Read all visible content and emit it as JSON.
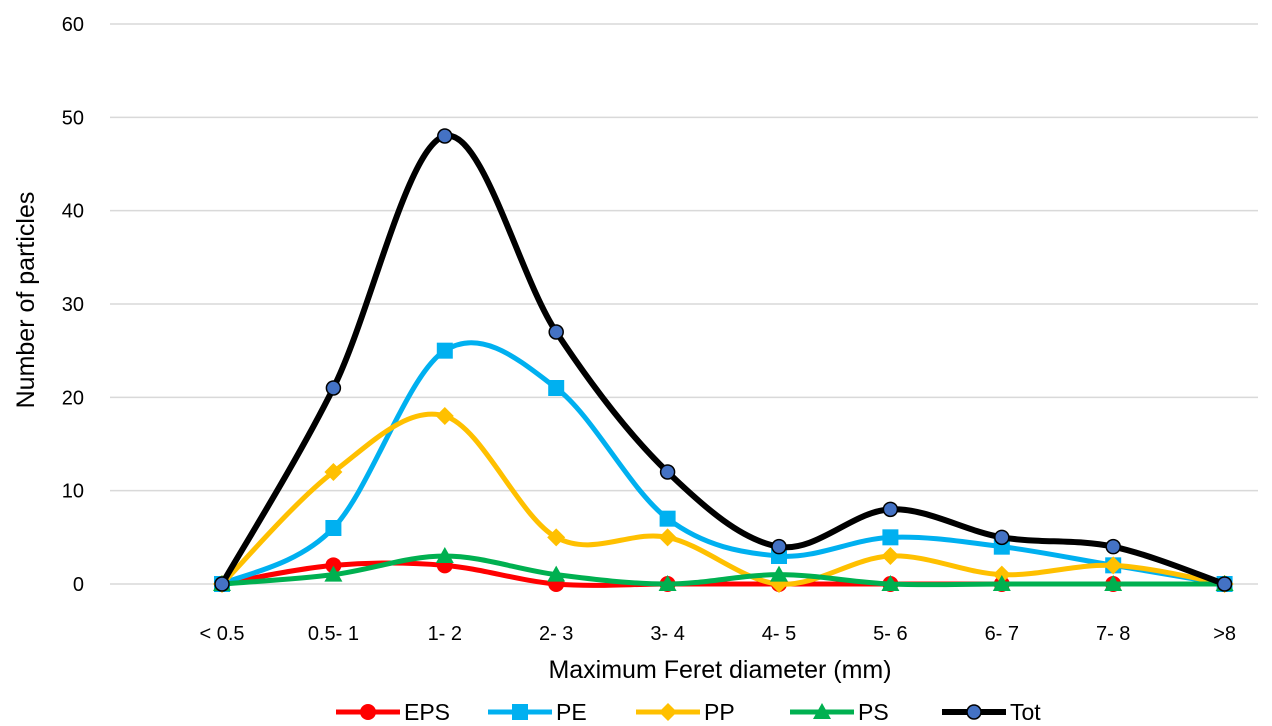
{
  "chart_data": {
    "type": "line",
    "smooth": true,
    "categories": [
      "< 0.5",
      "0.5- 1",
      "1- 2",
      "2- 3",
      "3- 4",
      "4- 5",
      "5- 6",
      "6- 7",
      "7- 8",
      ">8"
    ],
    "series": [
      {
        "name": "EPS",
        "color": "#ff0000",
        "marker": "circle",
        "values": [
          0,
          2,
          2,
          0,
          0,
          0,
          0,
          0,
          0,
          0
        ]
      },
      {
        "name": "PE",
        "color": "#00b0f0",
        "marker": "square",
        "values": [
          0,
          6,
          25,
          21,
          7,
          3,
          5,
          4,
          2,
          0
        ]
      },
      {
        "name": "PP",
        "color": "#ffc000",
        "marker": "diamond",
        "values": [
          0,
          12,
          18,
          5,
          5,
          0,
          3,
          1,
          2,
          0
        ]
      },
      {
        "name": "PS",
        "color": "#00b050",
        "marker": "triangle",
        "values": [
          0,
          1,
          3,
          1,
          0,
          1,
          0,
          0,
          0,
          0
        ]
      },
      {
        "name": "Tot",
        "color": "#000000",
        "marker": "circle-outline",
        "marker_fill": "#4472c4",
        "values": [
          0,
          21,
          48,
          27,
          12,
          4,
          8,
          5,
          4,
          0
        ]
      }
    ],
    "xlabel": "Maximum Feret diameter (mm)",
    "ylabel": "Number of particles",
    "ylim": [
      0,
      60
    ],
    "yticks": [
      0,
      10,
      20,
      30,
      40,
      50,
      60
    ],
    "grid": "horizontal",
    "legend": "bottom"
  }
}
